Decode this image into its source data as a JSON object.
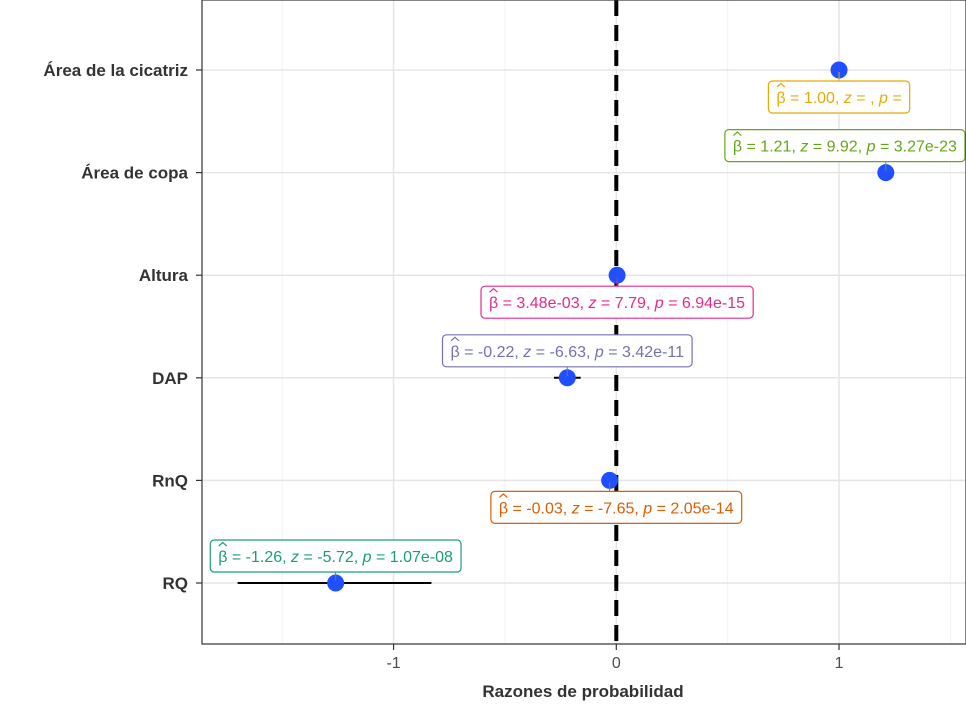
{
  "chart_data": {
    "type": "scatter",
    "title": "",
    "xlabel": "Razones de probabilidad",
    "ylabel": "",
    "xlim": [
      -1.86,
      1.57
    ],
    "xticks": [
      -1,
      0,
      1
    ],
    "xtick_labels": [
      "-1",
      "0",
      "1"
    ],
    "grid": true,
    "reference_line_x": 0,
    "categories": [
      "Área de la cicatriz",
      "Área de copa",
      "Altura",
      "DAP",
      "RnQ",
      "RQ"
    ],
    "points": [
      {
        "label": "Área de la cicatriz",
        "estimate": 1.0,
        "ci": null,
        "color": "#1f4fff",
        "annotation": {
          "beta": "1.00",
          "z": "",
          "p": "",
          "color": "#e6ab02",
          "ax": 1.0,
          "side": "below"
        }
      },
      {
        "label": "Área de copa",
        "estimate": 1.21,
        "ci": null,
        "color": "#1f4fff",
        "annotation": {
          "beta": "1.21",
          "z": "9.92",
          "p": "3.27e-23",
          "color": "#66a61e",
          "ax": 1.21,
          "side": "above"
        }
      },
      {
        "label": "Altura",
        "estimate": 0.0035,
        "ci": null,
        "color": "#1f4fff",
        "annotation": {
          "beta": "3.48e-03",
          "z": "7.79",
          "p": "6.94e-15",
          "color": "#e7298a",
          "ax": 0.0035,
          "side": "below"
        }
      },
      {
        "label": "DAP",
        "estimate": -0.22,
        "ci": [
          -0.28,
          -0.16
        ],
        "color": "#1f4fff",
        "annotation": {
          "beta": "-0.22",
          "z": "-6.63",
          "p": "3.42e-11",
          "color": "#7570b3",
          "ax": -0.22,
          "side": "above"
        }
      },
      {
        "label": "RnQ",
        "estimate": -0.03,
        "ci": [
          -0.04,
          -0.02
        ],
        "color": "#1f4fff",
        "annotation": {
          "beta": "-0.03",
          "z": "-7.65",
          "p": "2.05e-14",
          "color": "#d95f02",
          "ax": 0.0,
          "side": "below"
        }
      },
      {
        "label": "RQ",
        "estimate": -1.26,
        "ci": [
          -1.7,
          -0.83
        ],
        "color": "#1f4fff",
        "annotation": {
          "beta": "-1.26",
          "z": "-5.72",
          "p": "1.07e-08",
          "color": "#1b9e77",
          "ax": -1.26,
          "side": "above"
        }
      }
    ]
  }
}
